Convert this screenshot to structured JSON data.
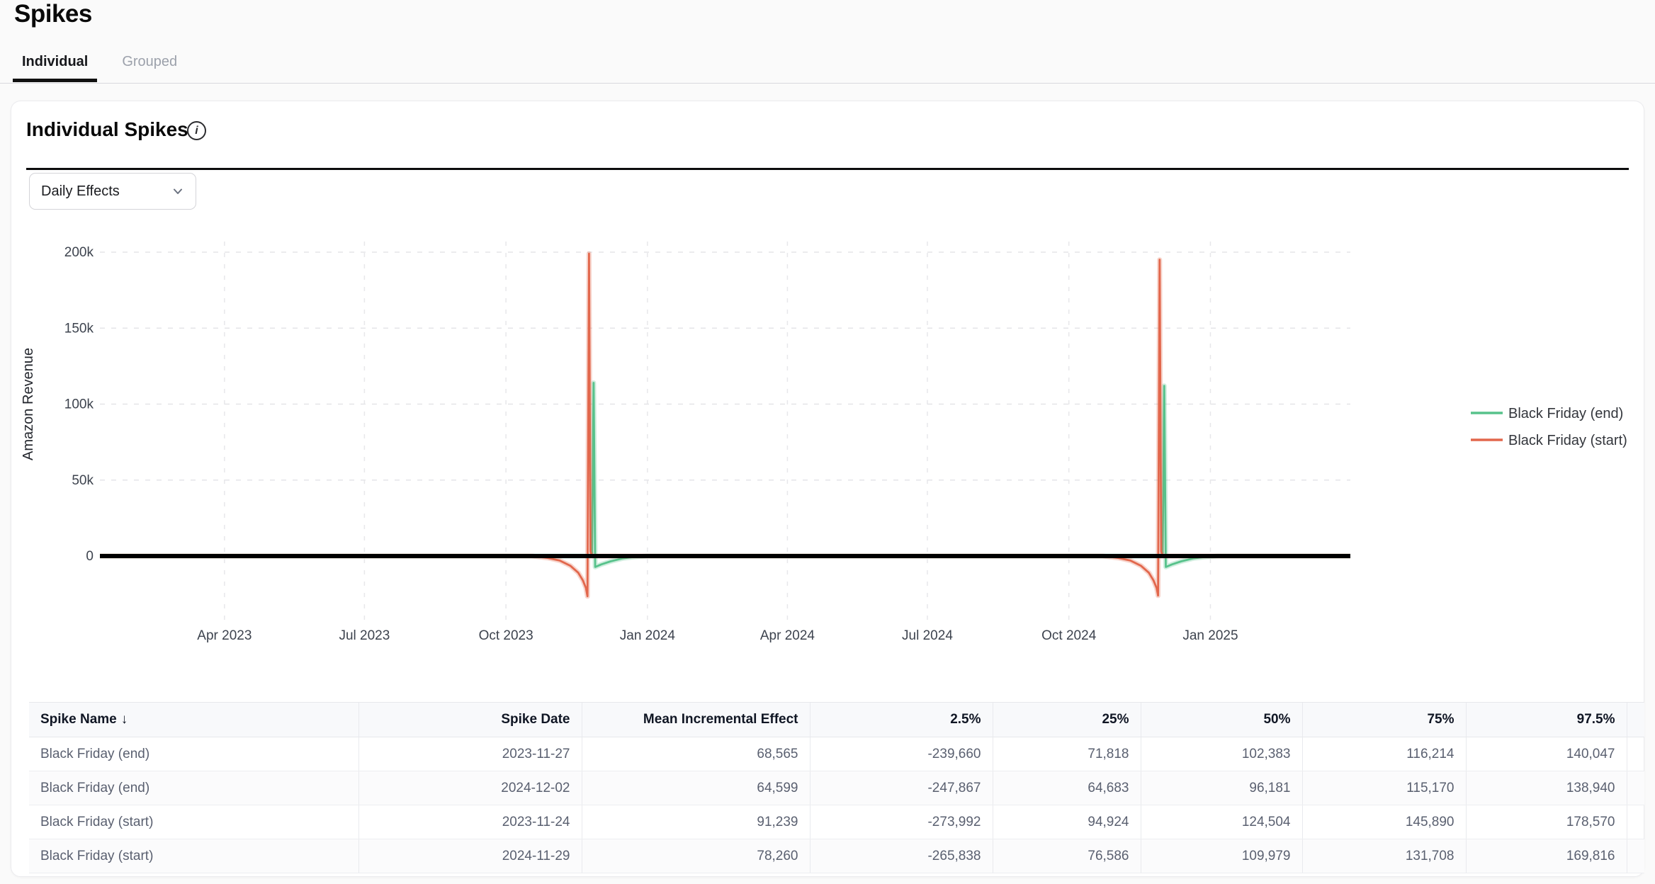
{
  "page": {
    "title": "Spikes"
  },
  "tabs": [
    {
      "label": "Individual",
      "active": true
    },
    {
      "label": "Grouped",
      "active": false
    }
  ],
  "card": {
    "heading": "Individual Spikes",
    "info_icon": "i",
    "dropdown": {
      "value": "Daily Effects"
    }
  },
  "chart_data": {
    "type": "line",
    "title": "",
    "xlabel": "",
    "ylabel": "Amazon Revenue",
    "grid": "dashed",
    "legend_position": "right",
    "x_domain": [
      "2023-01-10",
      "2025-04-02"
    ],
    "ylim": [
      -45000,
      207000
    ],
    "y_ticks": [
      {
        "v": 0,
        "label": "0"
      },
      {
        "v": 50000,
        "label": "50k"
      },
      {
        "v": 100000,
        "label": "100k"
      },
      {
        "v": 150000,
        "label": "150k"
      },
      {
        "v": 200000,
        "label": "200k"
      }
    ],
    "x_ticks": [
      {
        "d": "2023-04-01",
        "label": "Apr 2023"
      },
      {
        "d": "2023-07-01",
        "label": "Jul 2023"
      },
      {
        "d": "2023-10-01",
        "label": "Oct 2023"
      },
      {
        "d": "2024-01-01",
        "label": "Jan 2024"
      },
      {
        "d": "2024-04-01",
        "label": "Apr 2024"
      },
      {
        "d": "2024-07-01",
        "label": "Jul 2024"
      },
      {
        "d": "2024-10-01",
        "label": "Oct 2024"
      },
      {
        "d": "2025-01-01",
        "label": "Jan 2025"
      }
    ],
    "zero_line": true,
    "zero_line_color": "#000000",
    "series": [
      {
        "name": "Black Friday (end)",
        "color": "#57c28b",
        "points": [
          [
            "2023-01-10",
            0
          ],
          [
            "2023-11-25",
            0
          ],
          [
            "2023-11-26",
            2000
          ],
          [
            "2023-11-27",
            114000
          ],
          [
            "2023-11-28",
            -7200
          ],
          [
            "2023-12-02",
            -5500
          ],
          [
            "2023-12-08",
            -3500
          ],
          [
            "2023-12-16",
            -1500
          ],
          [
            "2023-12-24",
            -500
          ],
          [
            "2024-01-01",
            0
          ],
          [
            "2024-11-30",
            0
          ],
          [
            "2024-12-01",
            2000
          ],
          [
            "2024-12-02",
            112000
          ],
          [
            "2024-12-03",
            -7200
          ],
          [
            "2024-12-07",
            -5500
          ],
          [
            "2024-12-13",
            -3500
          ],
          [
            "2024-12-21",
            -1500
          ],
          [
            "2024-12-29",
            -500
          ],
          [
            "2025-01-06",
            0
          ],
          [
            "2025-04-02",
            0
          ]
        ]
      },
      {
        "name": "Black Friday (start)",
        "color": "#e2674c",
        "points": [
          [
            "2023-01-10",
            0
          ],
          [
            "2023-10-18",
            0
          ],
          [
            "2023-10-28",
            -1200
          ],
          [
            "2023-11-05",
            -3000
          ],
          [
            "2023-11-12",
            -6500
          ],
          [
            "2023-11-17",
            -11000
          ],
          [
            "2023-11-20",
            -16000
          ],
          [
            "2023-11-22",
            -21000
          ],
          [
            "2023-11-23",
            -26500
          ],
          [
            "2023-11-24",
            199000
          ],
          [
            "2023-11-25",
            3000
          ],
          [
            "2023-11-26",
            0
          ],
          [
            "2024-10-23",
            0
          ],
          [
            "2024-11-02",
            -1200
          ],
          [
            "2024-11-10",
            -3000
          ],
          [
            "2024-11-17",
            -6500
          ],
          [
            "2024-11-22",
            -11000
          ],
          [
            "2024-11-25",
            -16000
          ],
          [
            "2024-11-27",
            -21000
          ],
          [
            "2024-11-28",
            -26000
          ],
          [
            "2024-11-29",
            195000
          ],
          [
            "2024-11-30",
            3000
          ],
          [
            "2024-12-01",
            0
          ],
          [
            "2025-04-02",
            0
          ]
        ]
      }
    ]
  },
  "table": {
    "columns": [
      {
        "label": "Spike Name",
        "sort": "desc",
        "align": "left"
      },
      {
        "label": "Spike Date",
        "align": "right"
      },
      {
        "label": "Mean Incremental Effect",
        "align": "right"
      },
      {
        "label": "2.5%",
        "align": "right"
      },
      {
        "label": "25%",
        "align": "right"
      },
      {
        "label": "50%",
        "align": "right"
      },
      {
        "label": "75%",
        "align": "right"
      },
      {
        "label": "97.5%",
        "align": "right"
      }
    ],
    "rows": [
      [
        "Black Friday (end)",
        "2023-11-27",
        "68,565",
        "-239,660",
        "71,818",
        "102,383",
        "116,214",
        "140,047"
      ],
      [
        "Black Friday (end)",
        "2024-12-02",
        "64,599",
        "-247,867",
        "64,683",
        "96,181",
        "115,170",
        "138,940"
      ],
      [
        "Black Friday (start)",
        "2023-11-24",
        "91,239",
        "-273,992",
        "94,924",
        "124,504",
        "145,890",
        "178,570"
      ],
      [
        "Black Friday (start)",
        "2024-11-29",
        "78,260",
        "-265,838",
        "76,586",
        "109,979",
        "131,708",
        "169,816"
      ]
    ]
  }
}
